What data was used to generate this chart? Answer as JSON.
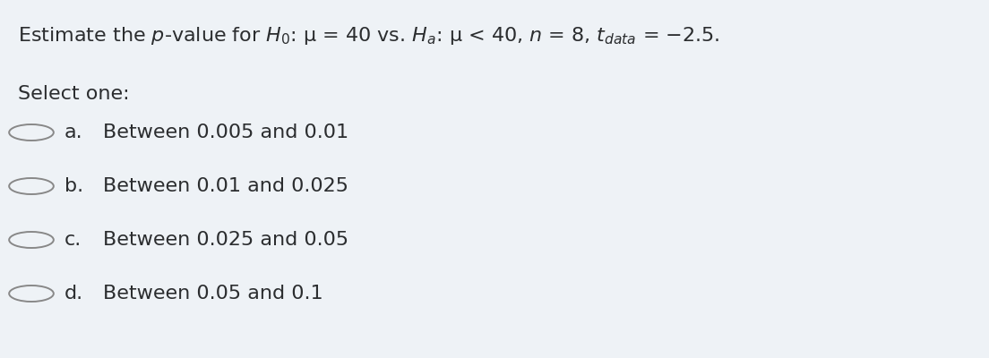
{
  "background_color": "#eef2f6",
  "title_line1": "Estimate the ",
  "title_line1_p": "p",
  "title_line1_rest": "-value for ",
  "title_full": "Estimate the $p$-value for $H_0$: μ = 40 vs. $H_a$: μ < 40, $n$ = 8, $t_{data}$ = −2.5.",
  "select_label": "Select one:",
  "options": [
    {
      "letter": "a.",
      "text": "Between 0.005 and 0.01"
    },
    {
      "letter": "b.",
      "text": "Between 0.01 and 0.025"
    },
    {
      "letter": "c.",
      "text": "Between 0.025 and 0.05"
    },
    {
      "letter": "d.",
      "text": "Between 0.05 and 0.1"
    }
  ],
  "title_fontsize": 16,
  "body_fontsize": 16,
  "text_color": "#2b2d2f",
  "circle_color": "#888888",
  "circle_linewidth": 1.4,
  "fig_width": 11.04,
  "fig_height": 4.0
}
